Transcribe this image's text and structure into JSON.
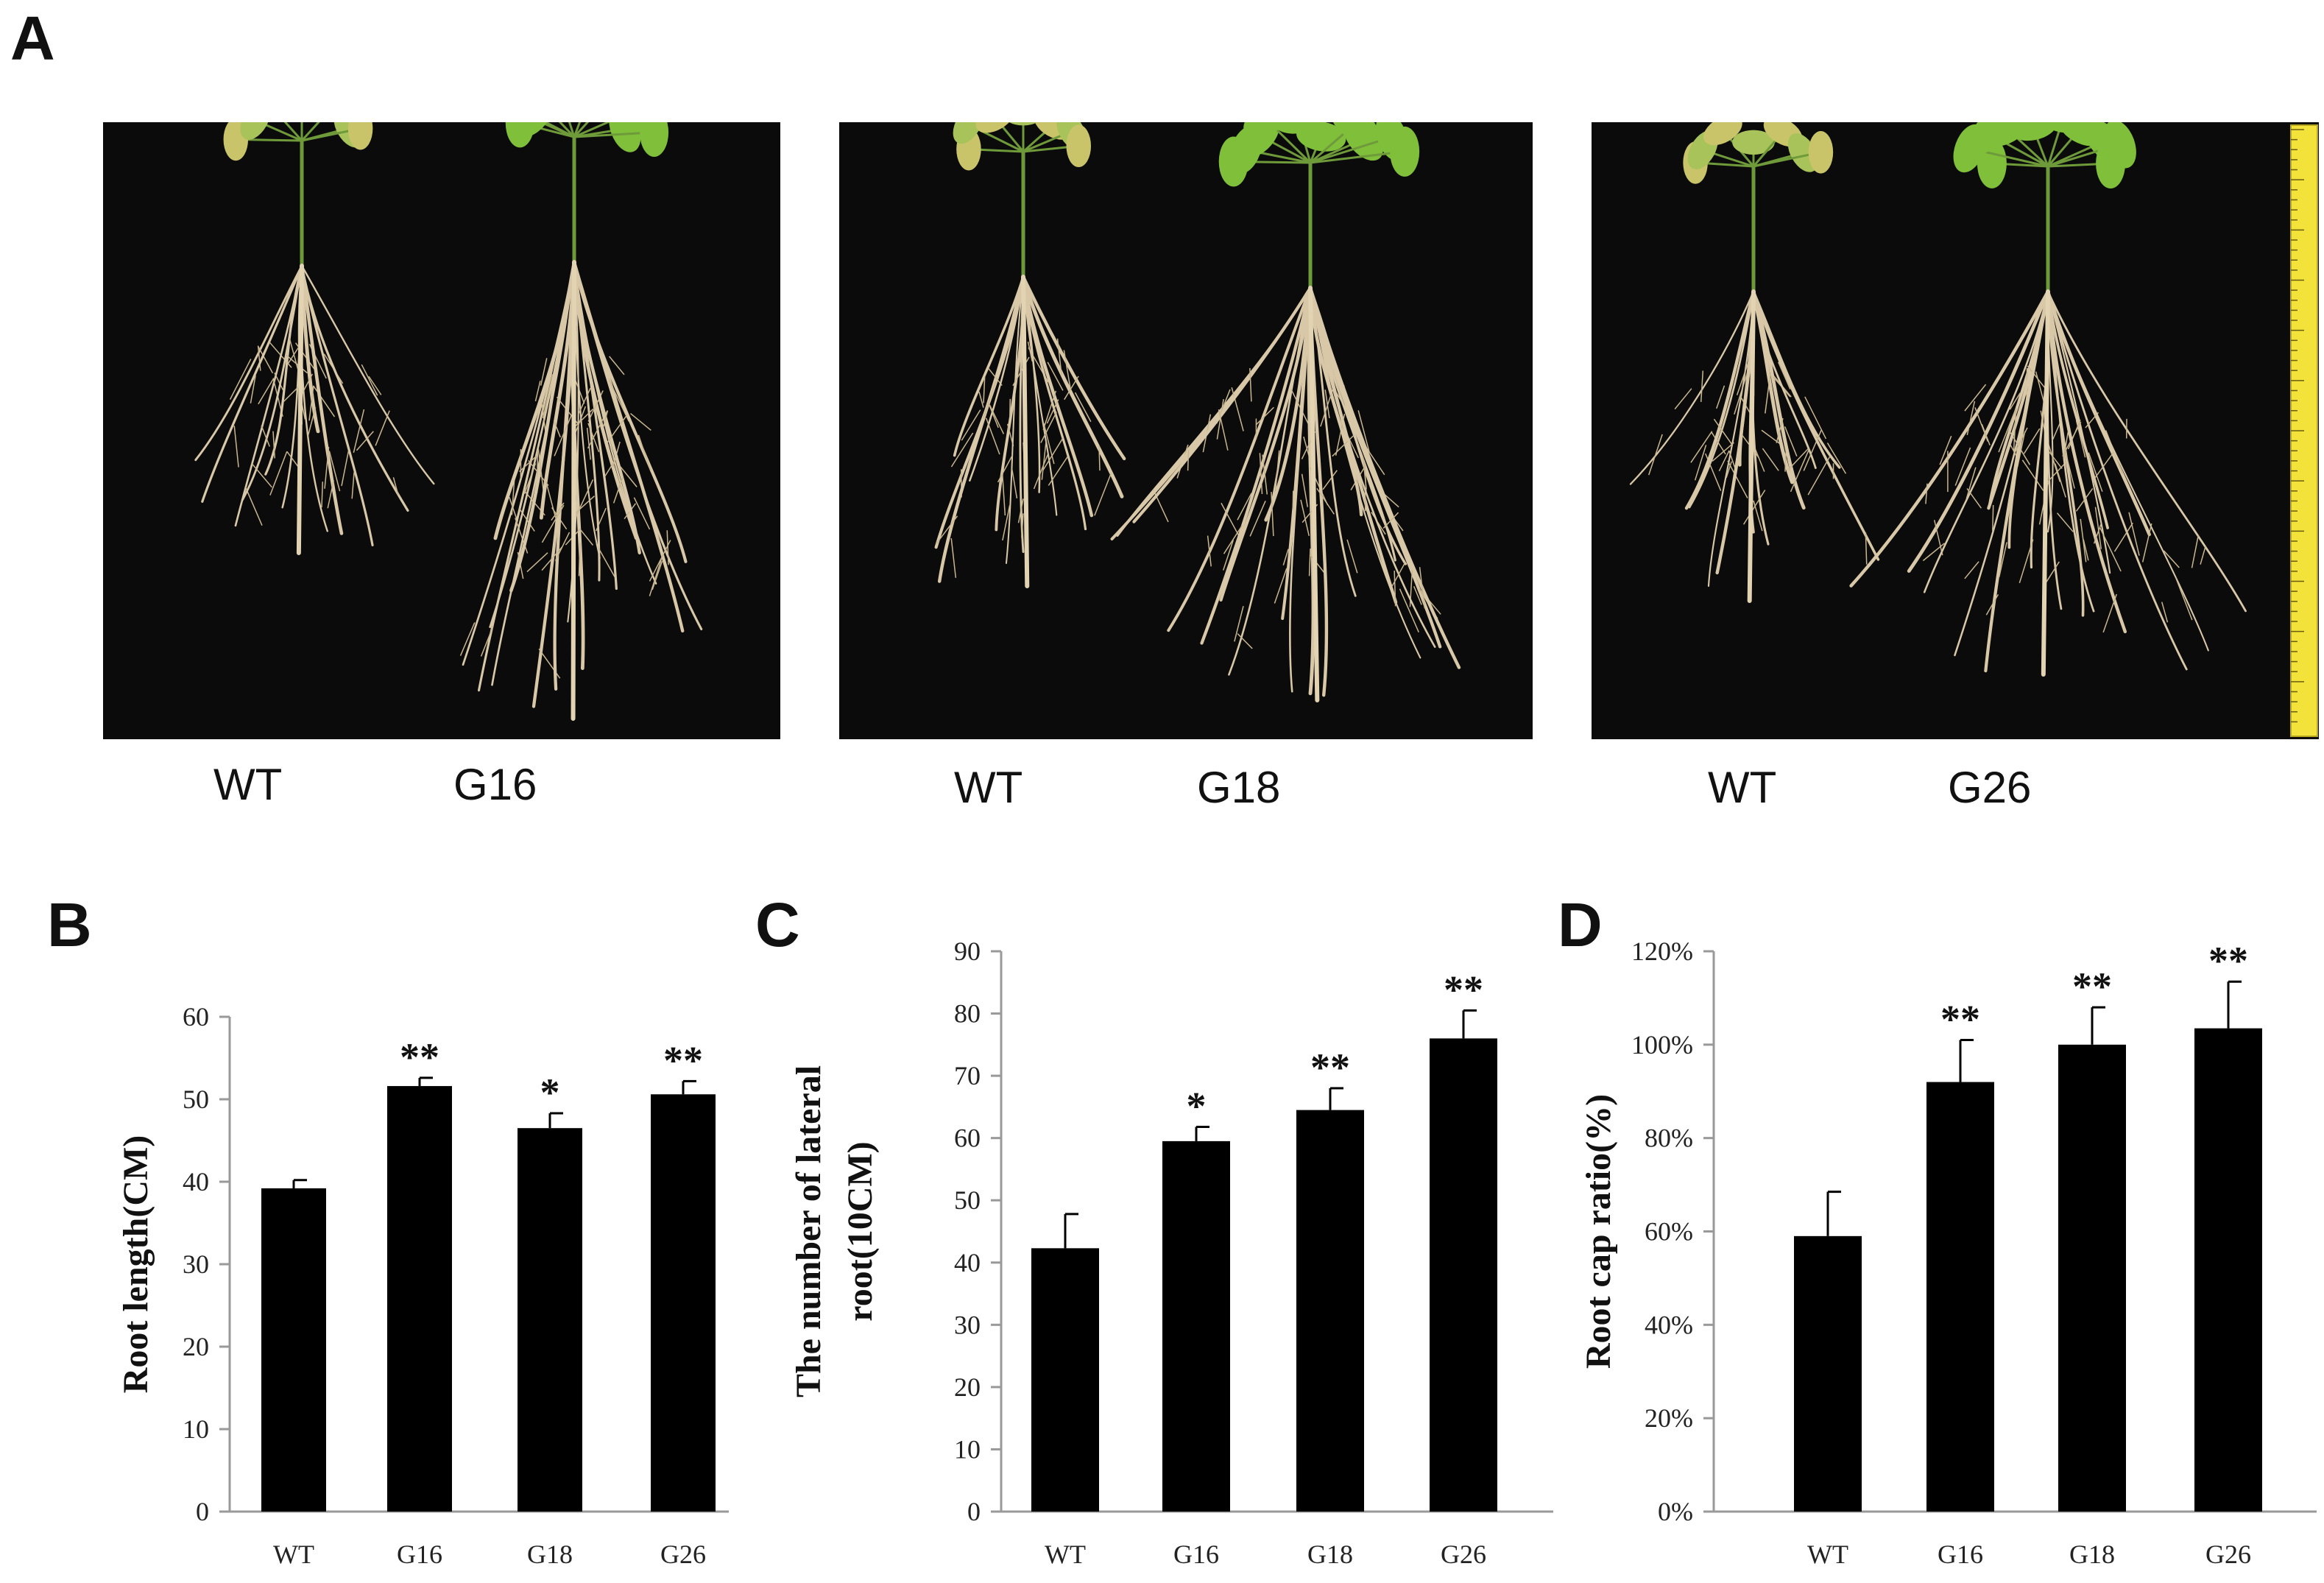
{
  "panels": {
    "a_letter": "A",
    "b_letter": "B",
    "c_letter": "C",
    "d_letter": "D"
  },
  "photos": [
    {
      "labels": [
        "WT",
        "G16"
      ]
    },
    {
      "labels": [
        "WT",
        "G18"
      ]
    },
    {
      "labels": [
        "WT",
        "G26"
      ]
    }
  ],
  "colors": {
    "bar": "#000000",
    "photo_background": "#0b0b0b",
    "leaf": "#7fbf3a",
    "root": "#d8c8a8",
    "ruler": "#f2e23a"
  },
  "chart_data": [
    {
      "type": "bar",
      "title": "",
      "xlabel": "",
      "ylabel": "Root length(CM)",
      "categories": [
        "WT",
        "G16",
        "G18",
        "G26"
      ],
      "values": [
        39.2,
        51.6,
        46.5,
        50.6
      ],
      "errors": [
        1.0,
        1.0,
        1.8,
        1.6
      ],
      "significance": [
        "",
        "**",
        "*",
        "**"
      ],
      "ylim": [
        0,
        60
      ],
      "yticks": [
        0,
        10,
        20,
        30,
        40,
        50,
        60
      ],
      "ytick_labels": [
        "0",
        "10",
        "20",
        "30",
        "40",
        "50",
        "60"
      ],
      "grid": false,
      "legend": "none"
    },
    {
      "type": "bar",
      "title": "",
      "xlabel": "",
      "ylabel": "The number of lateral root(10CM)",
      "ylabel_lines": [
        "The number of lateral",
        "root(10CM)"
      ],
      "categories": [
        "WT",
        "G16",
        "G18",
        "G26"
      ],
      "values": [
        42.3,
        59.5,
        64.5,
        76.0
      ],
      "errors": [
        5.5,
        2.3,
        3.5,
        4.5
      ],
      "significance": [
        "",
        "*",
        "**",
        "**"
      ],
      "ylim": [
        0,
        90
      ],
      "yticks": [
        0,
        10,
        20,
        30,
        40,
        50,
        60,
        70,
        80,
        90
      ],
      "ytick_labels": [
        "0",
        "10",
        "20",
        "30",
        "40",
        "50",
        "60",
        "70",
        "80",
        "90"
      ],
      "grid": false,
      "legend": "none"
    },
    {
      "type": "bar",
      "title": "",
      "xlabel": "",
      "ylabel": "Root cap ratio(%)",
      "categories": [
        "WT",
        "G16",
        "G18",
        "G26"
      ],
      "values": [
        59.0,
        92.0,
        100.0,
        103.5
      ],
      "errors": [
        9.5,
        9.0,
        8.0,
        10.0
      ],
      "significance": [
        "",
        "**",
        "**",
        "**"
      ],
      "ylim": [
        0,
        120
      ],
      "yticks": [
        0,
        20,
        40,
        60,
        80,
        100,
        120
      ],
      "ytick_labels": [
        "0%",
        "20%",
        "40%",
        "60%",
        "80%",
        "100%",
        "120%"
      ],
      "grid": false,
      "legend": "none"
    }
  ]
}
